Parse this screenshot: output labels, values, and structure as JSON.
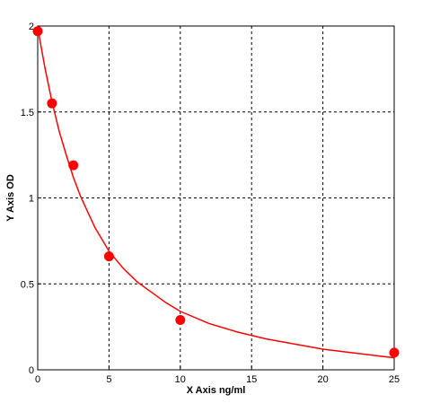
{
  "chart_data": {
    "type": "scatter",
    "title": "",
    "xlabel": "X Axis ng/ml",
    "ylabel": "Y Axis OD",
    "xlim": [
      0,
      25
    ],
    "ylim": [
      0,
      2
    ],
    "x_ticks": [
      0,
      5,
      10,
      15,
      20,
      25
    ],
    "y_ticks": [
      0,
      0.5,
      1,
      1.5,
      2
    ],
    "x_tick_labels": [
      "0",
      "5",
      "10",
      "15",
      "20",
      "25"
    ],
    "y_tick_labels": [
      "0",
      "0.5",
      "1",
      "1.5",
      "2"
    ],
    "grid": true,
    "legend": "none",
    "series": [
      {
        "x": [
          0,
          1,
          2.5,
          5,
          10,
          25
        ],
        "y": [
          1.97,
          1.55,
          1.19,
          0.66,
          0.29,
          0.1
        ],
        "color": "#ff0000"
      }
    ],
    "fit_curve": {
      "color": "#ff0000",
      "x": [
        0,
        0.5,
        1,
        1.5,
        2,
        2.5,
        3,
        4,
        5,
        6,
        7,
        8,
        9,
        10,
        12,
        14,
        16,
        18,
        20,
        22,
        25
      ],
      "y": [
        1.99,
        1.76,
        1.56,
        1.39,
        1.25,
        1.12,
        1.01,
        0.83,
        0.69,
        0.59,
        0.51,
        0.45,
        0.39,
        0.34,
        0.27,
        0.22,
        0.18,
        0.15,
        0.12,
        0.1,
        0.07
      ]
    }
  }
}
